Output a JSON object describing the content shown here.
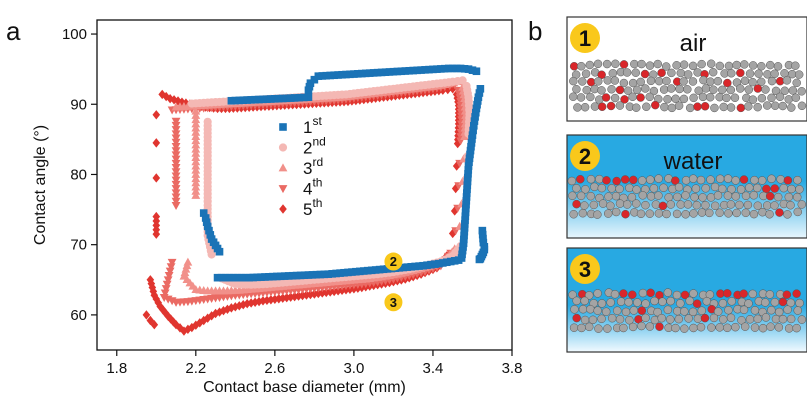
{
  "panel_labels": {
    "a": "a",
    "b": "b"
  },
  "colors": {
    "series": [
      "#1a73b6",
      "#f4b8b4",
      "#f1908a",
      "#ea6a63",
      "#e0352f"
    ],
    "badge": "#f9c81b",
    "water": "#28a9e2",
    "bead": "#a4a4a4",
    "bead_red": "#d9262a"
  },
  "chart_data": {
    "type": "scatter",
    "xlabel": "Contact base diameter (mm)",
    "ylabel": "Contact angle (°)",
    "xlim": [
      1.7,
      3.8
    ],
    "ylim": [
      55,
      102
    ],
    "xticks": [
      1.8,
      2.2,
      2.6,
      3.0,
      3.4,
      3.8
    ],
    "xtick_labels": [
      "1.8",
      "2.2",
      "2.6",
      "3.0",
      "3.4",
      "3.8"
    ],
    "yticks": [
      60,
      70,
      80,
      90,
      100
    ],
    "ytick_labels": [
      "60",
      "70",
      "80",
      "90",
      "100"
    ],
    "legend_position": "center",
    "grid": false,
    "series": [
      {
        "base": "1",
        "sup": "st",
        "marker": "square",
        "x": [
          2.31,
          2.39,
          2.47,
          2.55,
          2.63,
          2.71,
          2.79,
          2.87,
          2.95,
          3.03,
          3.11,
          3.19,
          3.27,
          3.35,
          3.43,
          3.49,
          3.53,
          3.545,
          3.555,
          3.56,
          3.565,
          3.57,
          3.575,
          3.58,
          3.59,
          3.6,
          3.61,
          3.62,
          3.63,
          3.64,
          3.65,
          3.655,
          3.66,
          3.66,
          3.655,
          3.65,
          3.645,
          3.64,
          3.635,
          3.62,
          3.58,
          3.54,
          3.48,
          3.42,
          3.36,
          3.3,
          3.24,
          3.18,
          3.12,
          3.06,
          3.0,
          2.94,
          2.88,
          2.82,
          2.78,
          2.77,
          2.77,
          2.7,
          2.62,
          2.54,
          2.46,
          2.38,
          2.32,
          2.28,
          2.26,
          2.25,
          2.24
        ],
        "y": [
          65.3,
          65.3,
          65.3,
          65.4,
          65.5,
          65.6,
          65.7,
          65.8,
          66.0,
          66.2,
          66.4,
          66.6,
          66.8,
          67.0,
          67.3,
          67.6,
          67.8,
          68.1,
          70.2,
          72.4,
          74.6,
          76.8,
          79.0,
          81.2,
          83.4,
          85.6,
          87.6,
          89.4,
          91.0,
          92.2,
          72.0,
          70.3,
          69.7,
          69.3,
          68.9,
          68.6,
          68.3,
          68.0,
          67.9,
          94.7,
          95.0,
          95.1,
          95.1,
          95.0,
          94.9,
          94.8,
          94.7,
          94.6,
          94.5,
          94.4,
          94.3,
          94.2,
          94.1,
          94.0,
          93.0,
          92.0,
          91.0,
          90.9,
          90.8,
          90.7,
          90.6,
          90.5,
          69.0,
          70.8,
          72.6,
          73.8,
          74.5
        ]
      },
      {
        "base": "2",
        "sup": "nd",
        "marker": "circle",
        "x": [
          2.26,
          2.26,
          2.26,
          2.26,
          2.26,
          2.26,
          2.26,
          2.28,
          2.33,
          2.4,
          2.48,
          2.56,
          2.64,
          2.72,
          2.8,
          2.88,
          2.96,
          3.04,
          3.12,
          3.2,
          3.28,
          3.36,
          3.44,
          3.5,
          3.54,
          3.56,
          3.565,
          3.57,
          3.575,
          3.58,
          3.585,
          3.58,
          3.57,
          3.55,
          3.5,
          3.44,
          3.38,
          3.32,
          3.26,
          3.2,
          3.14,
          3.08,
          3.02,
          2.96,
          2.9,
          2.84,
          2.78,
          2.72,
          2.66,
          2.6,
          2.54,
          2.48,
          2.42,
          2.36,
          2.3,
          2.24,
          2.18
        ],
        "y": [
          87.5,
          84.8,
          82.1,
          79.4,
          76.7,
          74.0,
          71.3,
          68.6,
          65.2,
          64.4,
          64.3,
          64.4,
          64.6,
          64.8,
          65.0,
          65.2,
          65.4,
          65.6,
          65.8,
          66.1,
          66.5,
          67.0,
          67.6,
          68.4,
          69.8,
          73.0,
          76.2,
          79.4,
          82.6,
          85.8,
          88.6,
          91.0,
          92.6,
          93.4,
          93.2,
          93.0,
          92.8,
          92.6,
          92.4,
          92.2,
          92.0,
          91.8,
          91.6,
          91.4,
          91.3,
          91.2,
          91.1,
          91.0,
          90.9,
          90.8,
          90.7,
          90.6,
          90.5,
          90.4,
          90.3,
          90.2,
          90.1
        ]
      },
      {
        "base": "3",
        "sup": "rd",
        "marker": "triangle-up",
        "x": [
          2.2,
          2.2,
          2.2,
          2.2,
          2.2,
          2.16,
          2.14,
          2.2,
          2.26,
          2.34,
          2.42,
          2.5,
          2.58,
          2.66,
          2.74,
          2.82,
          2.9,
          2.98,
          3.06,
          3.14,
          3.22,
          3.3,
          3.38,
          3.46,
          3.51,
          3.535,
          3.545,
          3.55,
          3.555,
          3.56,
          3.565,
          3.56,
          3.55,
          3.53,
          3.48,
          3.42,
          3.36,
          3.3,
          3.24,
          3.18,
          3.12,
          3.06,
          3.0,
          2.94,
          2.88,
          2.82,
          2.76,
          2.7,
          2.64,
          2.58,
          2.52,
          2.46,
          2.4,
          2.34,
          2.28,
          2.22,
          2.16,
          2.1
        ],
        "y": [
          89.0,
          86.0,
          83.0,
          80.0,
          77.0,
          67.5,
          65.5,
          63.6,
          63.4,
          63.4,
          63.5,
          63.7,
          63.9,
          64.1,
          64.3,
          64.5,
          64.7,
          64.9,
          65.1,
          65.4,
          65.8,
          66.3,
          66.9,
          67.7,
          69.4,
          72.6,
          75.8,
          79.0,
          82.2,
          85.4,
          88.4,
          90.8,
          92.4,
          93.2,
          92.9,
          92.6,
          92.4,
          92.2,
          92.0,
          91.8,
          91.6,
          91.4,
          91.2,
          91.0,
          90.9,
          90.8,
          90.7,
          90.6,
          90.5,
          90.4,
          90.3,
          90.2,
          90.1,
          90.0,
          89.9,
          89.8,
          89.7,
          89.6
        ]
      },
      {
        "base": "4",
        "sup": "th",
        "marker": "triangle-down",
        "x": [
          2.1,
          2.1,
          2.1,
          2.1,
          2.1,
          2.08,
          2.06,
          2.04,
          2.1,
          2.16,
          2.24,
          2.32,
          2.4,
          2.48,
          2.56,
          2.64,
          2.72,
          2.8,
          2.88,
          2.96,
          3.04,
          3.12,
          3.2,
          3.28,
          3.36,
          3.44,
          3.49,
          3.515,
          3.525,
          3.53,
          3.535,
          3.54,
          3.545,
          3.54,
          3.53,
          3.51,
          3.46,
          3.4,
          3.34,
          3.28,
          3.22,
          3.16,
          3.1,
          3.04,
          2.98,
          2.92,
          2.86,
          2.8,
          2.74,
          2.68,
          2.62,
          2.56,
          2.5,
          2.44,
          2.38,
          2.32,
          2.26,
          2.2,
          2.14,
          2.08
        ],
        "y": [
          87.6,
          84.6,
          81.6,
          78.6,
          75.6,
          67.5,
          65.0,
          62.5,
          61.8,
          61.9,
          62.2,
          62.5,
          62.8,
          63.0,
          63.2,
          63.4,
          63.6,
          63.8,
          64.0,
          64.2,
          64.4,
          64.7,
          65.1,
          65.6,
          66.2,
          67.0,
          68.8,
          72.0,
          75.2,
          78.4,
          81.6,
          84.8,
          87.8,
          90.4,
          92.0,
          92.8,
          92.5,
          92.2,
          92.0,
          91.8,
          91.6,
          91.4,
          91.2,
          91.0,
          90.8,
          90.6,
          90.5,
          90.4,
          90.3,
          90.2,
          90.1,
          90.0,
          89.9,
          89.8,
          89.7,
          89.6,
          89.5,
          89.4,
          89.3,
          89.2
        ]
      },
      {
        "base": "5",
        "sup": "th",
        "marker": "diamond",
        "x": [
          1.95,
          1.97,
          1.99,
          2.0,
          2.0,
          2.0,
          2.0,
          2.0,
          1.97,
          1.99,
          2.02,
          2.06,
          2.1,
          2.14,
          2.18,
          2.24,
          2.3,
          2.38,
          2.46,
          2.54,
          2.62,
          2.7,
          2.78,
          2.86,
          2.94,
          3.02,
          3.1,
          3.18,
          3.26,
          3.34,
          3.42,
          3.47,
          3.5,
          3.51,
          3.515,
          3.52,
          3.525,
          3.53,
          3.53,
          3.52,
          3.5,
          3.45,
          3.39,
          3.33,
          3.27,
          3.21,
          3.15,
          3.09,
          3.03,
          2.97,
          2.91,
          2.85,
          2.79,
          2.73,
          2.67,
          2.61,
          2.55,
          2.49,
          2.43,
          2.37,
          2.31,
          2.25,
          2.19,
          2.13,
          2.07,
          2.03
        ],
        "y": [
          60.0,
          59.2,
          58.6,
          79.5,
          84.5,
          88.5,
          74.0,
          71.5,
          65.0,
          62.8,
          61.2,
          59.8,
          58.6,
          57.7,
          58.2,
          59.2,
          60.2,
          61.0,
          61.6,
          62.0,
          62.3,
          62.6,
          62.9,
          63.2,
          63.5,
          63.8,
          64.2,
          64.6,
          65.1,
          65.8,
          66.7,
          68.4,
          71.6,
          74.8,
          78.0,
          81.2,
          84.4,
          87.2,
          89.8,
          91.4,
          92.2,
          92.0,
          91.8,
          91.6,
          91.4,
          91.2,
          91.0,
          90.8,
          90.6,
          90.4,
          90.3,
          90.2,
          90.1,
          90.0,
          89.9,
          89.8,
          89.7,
          89.6,
          89.5,
          89.4,
          89.4,
          89.6,
          89.9,
          90.3,
          90.8,
          91.4
        ]
      }
    ],
    "annotations": [
      {
        "label": "2",
        "x": 3.2,
        "y": 67.6
      },
      {
        "label": "3",
        "x": 3.2,
        "y": 61.8
      }
    ]
  },
  "panel_b": {
    "boxes": [
      {
        "num": "1",
        "env_label": "air",
        "water": false
      },
      {
        "num": "2",
        "env_label": "water",
        "water": true
      },
      {
        "num": "3",
        "env_label": "",
        "water": true
      }
    ]
  }
}
